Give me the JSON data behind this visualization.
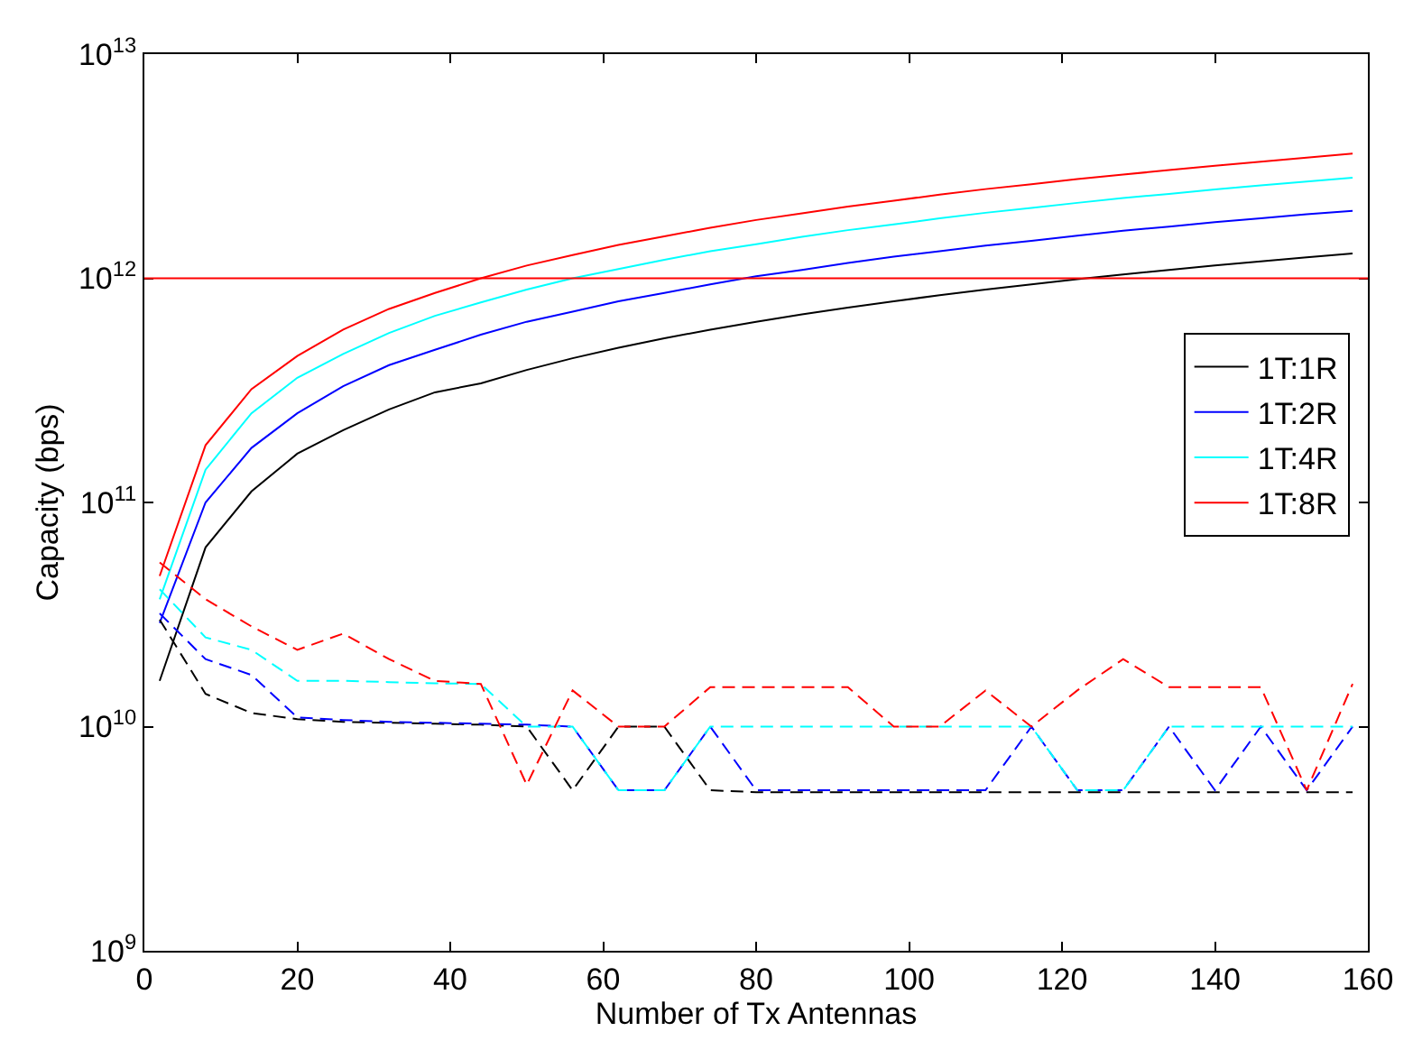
{
  "chart_data": {
    "type": "line",
    "xlabel": "Number of Tx Antennas",
    "ylabel": "Capacity (bps)",
    "log": "y",
    "legend": "right",
    "marker": "none",
    "x": [
      2,
      8,
      14,
      20,
      26,
      32,
      38,
      44,
      50,
      56,
      62,
      68,
      74,
      80,
      86,
      92,
      98,
      104,
      110,
      116,
      122,
      128,
      134,
      140,
      146,
      152,
      158
    ],
    "xlim": [
      0,
      160
    ],
    "xticks": [
      0,
      20,
      40,
      60,
      80,
      100,
      120,
      140,
      160
    ],
    "ylim": [
      1000000000.0,
      10000000000000.0
    ],
    "yticks": [
      {
        "value": 1000000000.0,
        "label": "10$^{9}$"
      },
      {
        "value": 10000000000.0,
        "label": "10$^{10}$"
      },
      {
        "value": 100000000000.0,
        "label": "10$^{11}$"
      },
      {
        "value": 1000000000000.0,
        "label": "10$^{12}$"
      },
      {
        "value": 10000000000000.0,
        "label": "10$^{13}$"
      }
    ],
    "series": [
      {
        "name": "1T:1R",
        "color": "#000000",
        "line_style": "solid",
        "values": [
          16000000000.0,
          63000000000.0,
          112000000000.0,
          165000000000.0,
          210000000000.0,
          260000000000.0,
          310000000000.0,
          340000000000.0,
          390000000000.0,
          440000000000.0,
          490000000000.0,
          540000000000.0,
          590000000000.0,
          640000000000.0,
          690000000000.0,
          740000000000.0,
          790000000000.0,
          840000000000.0,
          890000000000.0,
          940000000000.0,
          990000000000.0,
          1040000000000.0,
          1090000000000.0,
          1140000000000.0,
          1190000000000.0,
          1240000000000.0,
          1290000000000.0
        ]
      },
      {
        "name": "1T:2R",
        "color": "#0000ff",
        "line_style": "solid",
        "values": [
          29000000000.0,
          100000000000.0,
          175000000000.0,
          250000000000.0,
          330000000000.0,
          410000000000.0,
          480000000000.0,
          560000000000.0,
          640000000000.0,
          710000000000.0,
          790000000000.0,
          860000000000.0,
          940000000000.0,
          1020000000000.0,
          1090000000000.0,
          1170000000000.0,
          1250000000000.0,
          1320000000000.0,
          1400000000000.0,
          1470000000000.0,
          1550000000000.0,
          1630000000000.0,
          1700000000000.0,
          1780000000000.0,
          1850000000000.0,
          1930000000000.0,
          2000000000000.0
        ]
      },
      {
        "name": "1T:4R",
        "color": "#00ffff",
        "line_style": "solid",
        "values": [
          37000000000.0,
          140000000000.0,
          250000000000.0,
          360000000000.0,
          460000000000.0,
          570000000000.0,
          680000000000.0,
          780000000000.0,
          890000000000.0,
          1000000000000.0,
          1100000000000.0,
          1210000000000.0,
          1320000000000.0,
          1420000000000.0,
          1530000000000.0,
          1640000000000.0,
          1740000000000.0,
          1850000000000.0,
          1960000000000.0,
          2060000000000.0,
          2170000000000.0,
          2280000000000.0,
          2380000000000.0,
          2490000000000.0,
          2600000000000.0,
          2700000000000.0,
          2810000000000.0
        ]
      },
      {
        "name": "1T:8R",
        "color": "#ff0000",
        "line_style": "solid",
        "values": [
          47000000000.0,
          180000000000.0,
          320000000000.0,
          450000000000.0,
          590000000000.0,
          730000000000.0,
          860000000000.0,
          1000000000000.0,
          1140000000000.0,
          1270000000000.0,
          1410000000000.0,
          1540000000000.0,
          1680000000000.0,
          1820000000000.0,
          1950000000000.0,
          2090000000000.0,
          2220000000000.0,
          2360000000000.0,
          2500000000000.0,
          2630000000000.0,
          2770000000000.0,
          2900000000000.0,
          3040000000000.0,
          3180000000000.0,
          3310000000000.0,
          3450000000000.0,
          3600000000000.0
        ]
      },
      {
        "color": "#000000",
        "line_style": "dashed",
        "values": [
          30000000000.0,
          14000000000.0,
          11500000000.0,
          10800000000.0,
          10500000000.0,
          10400000000.0,
          10300000000.0,
          10200000000.0,
          10000000000.0,
          5200000000.0,
          10000000000.0,
          10000000000.0,
          5200000000.0,
          5100000000.0,
          5100000000.0,
          5100000000.0,
          5100000000.0,
          5100000000.0,
          5100000000.0,
          5100000000.0,
          5100000000.0,
          5100000000.0,
          5100000000.0,
          5100000000.0,
          5100000000.0,
          5100000000.0,
          5100000000.0
        ]
      },
      {
        "color": "#0000ff",
        "line_style": "dashed",
        "values": [
          32000000000.0,
          20000000000.0,
          17000000000.0,
          11000000000.0,
          10700000000.0,
          10500000000.0,
          10400000000.0,
          10300000000.0,
          10200000000.0,
          10000000000.0,
          5200000000.0,
          5200000000.0,
          10000000000.0,
          5200000000.0,
          5200000000.0,
          5200000000.0,
          5200000000.0,
          5200000000.0,
          5200000000.0,
          10000000000.0,
          5200000000.0,
          5200000000.0,
          10000000000.0,
          5200000000.0,
          10000000000.0,
          5200000000.0,
          10000000000.0
        ]
      },
      {
        "color": "#00ffff",
        "line_style": "dashed",
        "values": [
          41000000000.0,
          25000000000.0,
          22000000000.0,
          16000000000.0,
          16000000000.0,
          15800000000.0,
          15600000000.0,
          15500000000.0,
          10000000000.0,
          10000000000.0,
          5200000000.0,
          5200000000.0,
          10000000000.0,
          10000000000.0,
          10000000000.0,
          10000000000.0,
          10000000000.0,
          10000000000.0,
          10000000000.0,
          10000000000.0,
          5200000000.0,
          5200000000.0,
          10000000000.0,
          10000000000.0,
          10000000000.0,
          10000000000.0,
          10000000000.0
        ]
      },
      {
        "color": "#ff0000",
        "line_style": "dashed",
        "values": [
          54000000000.0,
          37000000000.0,
          28000000000.0,
          22000000000.0,
          26000000000.0,
          20000000000.0,
          16000000000.0,
          15500000000.0,
          5500000000.0,
          14500000000.0,
          10000000000.0,
          10000000000.0,
          15000000000.0,
          15000000000.0,
          15000000000.0,
          15000000000.0,
          10000000000.0,
          10000000000.0,
          14500000000.0,
          10000000000.0,
          14500000000.0,
          20000000000.0,
          15000000000.0,
          15000000000.0,
          15000000000.0,
          5200000000.0,
          15500000000.0
        ]
      }
    ],
    "ref_lines": [
      {
        "axis": "y",
        "value": 1000000000000.0,
        "color": "#ff0000",
        "line_style": "solid"
      }
    ]
  }
}
